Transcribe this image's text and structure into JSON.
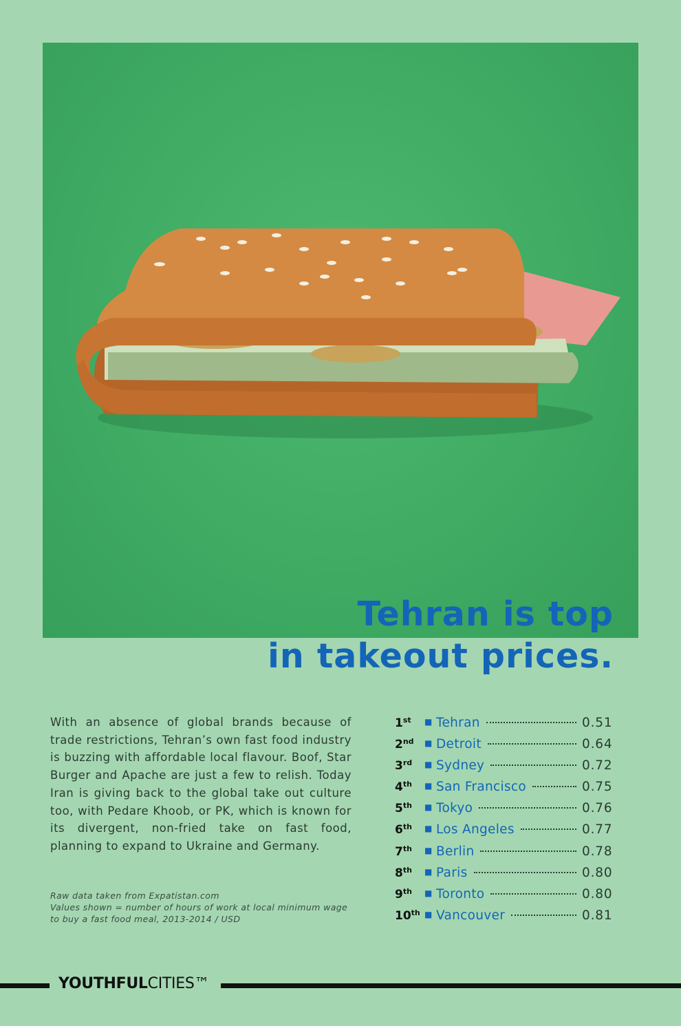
{
  "colors": {
    "background": "#a4d7b1",
    "photo_background": "#3fab63",
    "accent_blue": "#1464b8",
    "text_dark": "#2c3a33"
  },
  "photo": {
    "subject": "wallet-burger-photo"
  },
  "headline": {
    "line1": "Tehran is top",
    "line2": "in takeout prices."
  },
  "body": "With an absence of global brands because of trade restrictions, Tehran’s own fast food industry is buzzing with affordable local flavour. Boof, Star Burger and Apache are just a few to relish. Today Iran is giving back to the global take out culture too, with Pedare Khoob, or PK, which is known for its divergent, non-fried take on fast food, planning to expand to Ukraine and Germany.",
  "notes": {
    "line1": "Raw data taken from Expatistan.com",
    "line2": "Values shown = number of hours of work at local minimum wage",
    "line3": "to buy a fast food meal, 2013-2014 / USD"
  },
  "ranking": [
    {
      "num": "1",
      "suffix": "st",
      "city": "Tehran",
      "value": "0.51"
    },
    {
      "num": "2",
      "suffix": "nd",
      "city": "Detroit",
      "value": "0.64"
    },
    {
      "num": "3",
      "suffix": "rd",
      "city": "Sydney",
      "value": "0.72"
    },
    {
      "num": "4",
      "suffix": "th",
      "city": "San Francisco",
      "value": "0.75"
    },
    {
      "num": "5",
      "suffix": "th",
      "city": "Tokyo",
      "value": "0.76"
    },
    {
      "num": "6",
      "suffix": "th",
      "city": "Los Angeles",
      "value": "0.77"
    },
    {
      "num": "7",
      "suffix": "th",
      "city": "Berlin",
      "value": "0.78"
    },
    {
      "num": "8",
      "suffix": "th",
      "city": "Paris",
      "value": "0.80"
    },
    {
      "num": "9",
      "suffix": "th",
      "city": "Toronto",
      "value": "0.80"
    },
    {
      "num": "10",
      "suffix": "th",
      "city": "Vancouver",
      "value": "0.81"
    }
  ],
  "footer": {
    "logo_bold": "YOUTHFUL",
    "logo_regular": "CITIES",
    "logo_tm": "™"
  }
}
